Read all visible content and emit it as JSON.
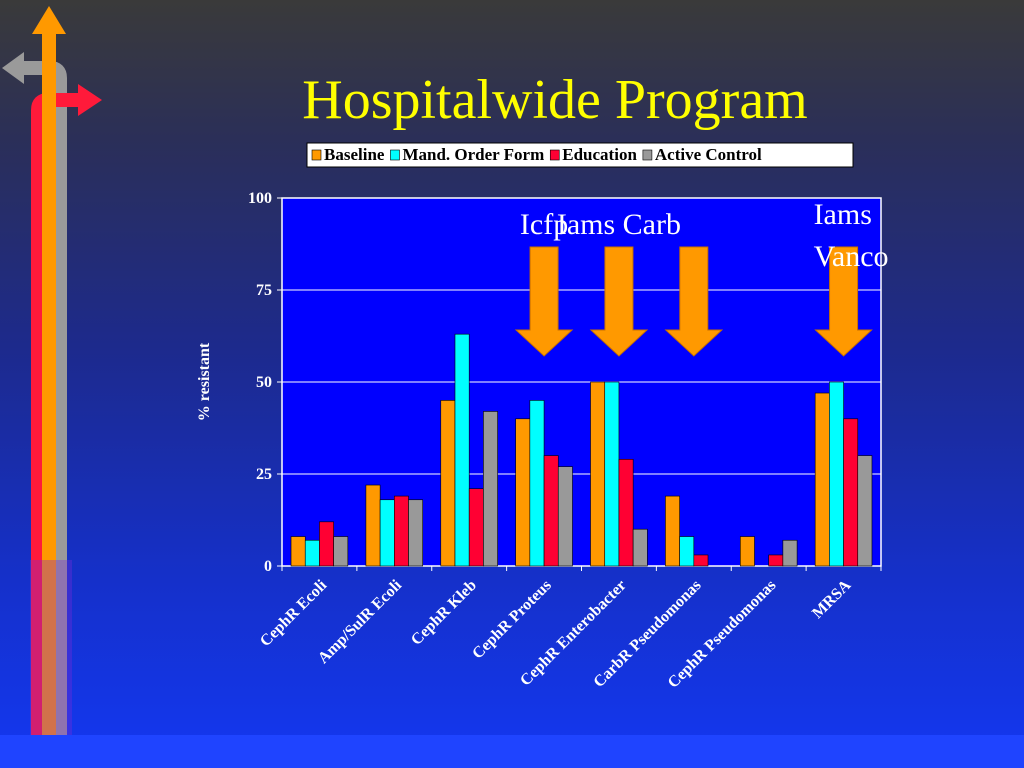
{
  "slide": {
    "title": "Hospitalwide Program"
  },
  "chart_data": {
    "type": "bar",
    "title": "",
    "ylabel": "% resistant",
    "xlabel": "",
    "ylim": [
      0,
      100
    ],
    "yticks": [
      0,
      25,
      50,
      75,
      100
    ],
    "grid": true,
    "legend_position": "top",
    "categories": [
      "CephR Ecoli",
      "Amp/SulR Ecoli",
      "CephR Kleb",
      "CephR Proteus",
      "CephR Enterobacter",
      "CarbR Pseudomonas",
      "CephR Pseudomonas",
      "MRSA"
    ],
    "series": [
      {
        "name": "Baseline",
        "color": "#ff9900",
        "values": [
          8,
          22,
          45,
          40,
          50,
          19,
          8,
          47
        ]
      },
      {
        "name": "Mand. Order Form",
        "color": "#00ffff",
        "values": [
          7,
          18,
          63,
          45,
          50,
          8,
          0,
          50
        ]
      },
      {
        "name": "Education",
        "color": "#ff0033",
        "values": [
          12,
          19,
          21,
          30,
          29,
          3,
          3,
          40
        ]
      },
      {
        "name": "Active Control",
        "color": "#999999",
        "values": [
          8,
          18,
          42,
          27,
          10,
          0,
          7,
          30
        ]
      }
    ],
    "annotations": [
      {
        "lines": [
          "Icfp"
        ],
        "arrow_at_category": 3
      },
      {
        "lines": [
          "Iams Carb"
        ],
        "arrow_at_category": 4
      },
      {
        "lines": [],
        "arrow_at_category": 5
      },
      {
        "lines": [
          "Iams",
          "Vanco"
        ],
        "arrow_at_category": 7
      }
    ],
    "arrow_color": "#ff9900",
    "plot_bg": "#0000ff"
  }
}
